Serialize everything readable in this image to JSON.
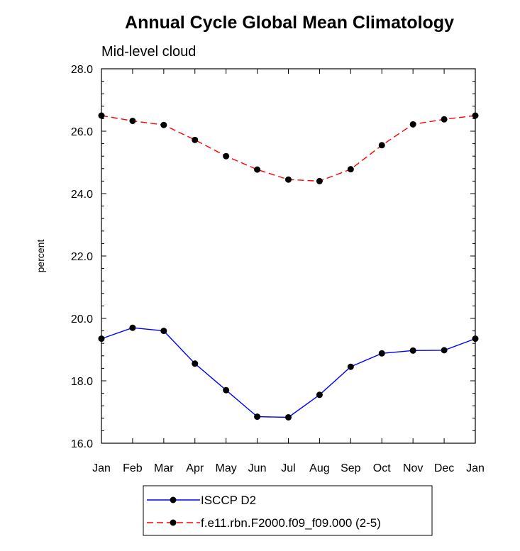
{
  "chart_data": {
    "type": "line",
    "title": "Annual Cycle Global Mean Climatology",
    "subtitle": "Mid-level cloud",
    "xlabel": "",
    "ylabel": "percent",
    "categories": [
      "Jan",
      "Feb",
      "Mar",
      "Apr",
      "May",
      "Jun",
      "Jul",
      "Aug",
      "Sep",
      "Oct",
      "Nov",
      "Dec",
      "Jan"
    ],
    "ylim": [
      16.0,
      28.0
    ],
    "yticks": [
      "16.0",
      "18.0",
      "20.0",
      "22.0",
      "24.0",
      "26.0",
      "28.0"
    ],
    "grid": false,
    "legend_position": "bottom",
    "series": [
      {
        "name": "ISCCP D2",
        "color": "#0000ff",
        "line_style": "solid",
        "marker": "filled-circle",
        "values": [
          19.35,
          19.7,
          19.6,
          18.55,
          17.7,
          16.85,
          16.83,
          17.55,
          18.45,
          18.88,
          18.97,
          18.98,
          19.35
        ]
      },
      {
        "name": "f.e11.rbn.F2000.f09_f09.000 (2-5)",
        "color": "#ff0000",
        "line_style": "dashed",
        "marker": "filled-circle",
        "values": [
          26.5,
          26.33,
          26.2,
          25.72,
          25.2,
          24.77,
          24.45,
          24.4,
          24.78,
          25.55,
          26.22,
          26.38,
          26.5
        ]
      }
    ]
  }
}
